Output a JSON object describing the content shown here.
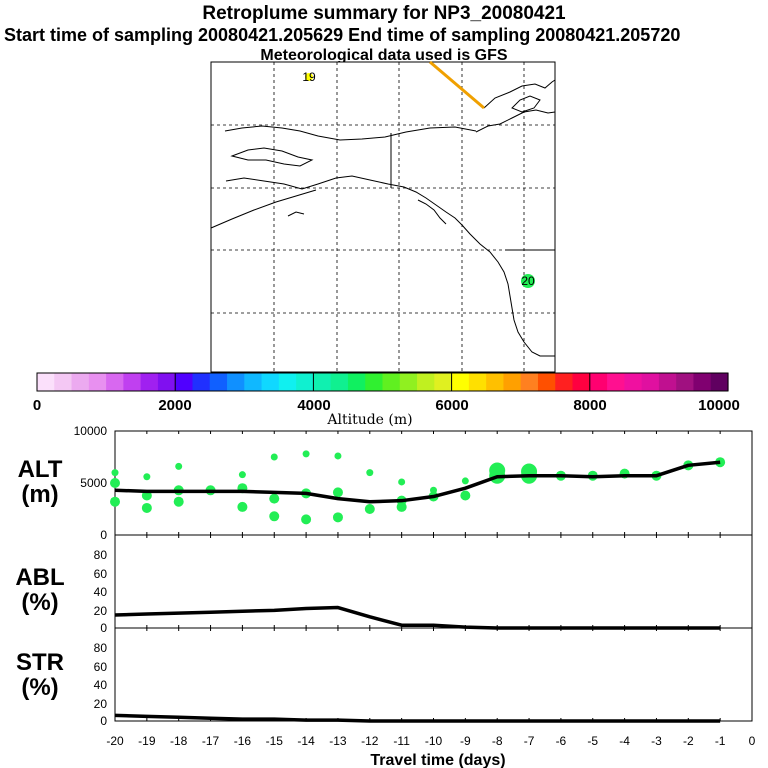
{
  "header": {
    "title": "Retroplume summary for NP3_20080421",
    "sampling_line": "Start time of sampling 20080421.205629     End time of sampling 20080421.205720",
    "met_line": "Meteorological data used is GFS"
  },
  "map": {
    "marker_labels": [
      "19",
      "20"
    ],
    "colors": {
      "plume": "#22ee55",
      "track": "#f0a000",
      "label19": "#ffff00"
    }
  },
  "colorbar": {
    "colors": [
      "#fbe0fb",
      "#f4c8f4",
      "#ecaaf0",
      "#e890f0",
      "#d868f0",
      "#c040f0",
      "#a020f0",
      "#8010f0",
      "#5000ff",
      "#2030ff",
      "#1060ff",
      "#1090ff",
      "#10b8ff",
      "#10d8ff",
      "#10f0f0",
      "#10f0d0",
      "#10f0b0",
      "#10f090",
      "#10f060",
      "#30f030",
      "#60f020",
      "#90f020",
      "#c0f020",
      "#e0f020",
      "#ffff00",
      "#ffe000",
      "#ffc000",
      "#ffa000",
      "#ff8020",
      "#ff5000",
      "#ff2020",
      "#ff0040",
      "#ff0070",
      "#ff1090",
      "#f010a0",
      "#e010a0",
      "#c01090",
      "#a01080",
      "#800070",
      "#600060"
    ],
    "tick_labels": [
      "0",
      "2000",
      "4000",
      "6000",
      "8000",
      "10000"
    ],
    "axis_label": "Altitude (m)"
  },
  "chart_data": {
    "type": "line",
    "x": [
      -20,
      -19,
      -18,
      -17,
      -16,
      -15,
      -14,
      -13,
      -12,
      -11,
      -10,
      -9,
      -8,
      -7,
      -6,
      -5,
      -4,
      -3,
      -2,
      -1
    ],
    "xlabel": "Travel time (days)",
    "xlim": [
      -20,
      0
    ],
    "x_tick_labels": [
      "-20",
      "-19",
      "-18",
      "-17",
      "-16",
      "-15",
      "-14",
      "-13",
      "-12",
      "-11",
      "-10",
      "-9",
      "-8",
      "-7",
      "-6",
      "-5",
      "-4",
      "-3",
      "-2",
      "-1",
      "0"
    ],
    "panels": [
      {
        "label": "ALT",
        "unit": "(m)",
        "ylim": [
          0,
          10000
        ],
        "y_tick_labels": [
          "10000",
          "5000",
          "0"
        ],
        "series": [
          {
            "name": "ALT",
            "values": [
              4300,
              4200,
              4200,
              4200,
              4200,
              4100,
              4000,
              3500,
              3200,
              3300,
              3700,
              4500,
              5600,
              5700,
              5700,
              5600,
              5700,
              5700,
              6700,
              7000
            ]
          }
        ]
      },
      {
        "label": "ABL",
        "unit": "(%)",
        "ylim": [
          0,
          100
        ],
        "y_tick_labels": [
          "80",
          "60",
          "40",
          "20",
          "0"
        ],
        "series": [
          {
            "name": "ABL",
            "values": [
              14,
              15,
              16,
              17,
              18,
              19,
              21,
              22,
              12,
              3,
              3,
              1,
              0,
              0,
              0,
              0,
              0,
              0,
              0,
              0
            ]
          }
        ]
      },
      {
        "label": "STR",
        "unit": "(%)",
        "ylim": [
          0,
          100
        ],
        "y_tick_labels": [
          "80",
          "60",
          "40",
          "20",
          "0"
        ],
        "series": [
          {
            "name": "STR",
            "values": [
              6,
              5,
              4,
              3,
              2,
              2,
              1,
              1,
              0,
              0,
              0,
              0,
              0,
              0,
              0,
              0,
              0,
              0,
              0,
              0
            ]
          }
        ]
      }
    ],
    "alt_spread": [
      {
        "x": -20,
        "y": [
          6000,
          5000,
          3200
        ]
      },
      {
        "x": -19,
        "y": [
          5600,
          3800,
          2600
        ]
      },
      {
        "x": -18,
        "y": [
          6600,
          4300,
          3200
        ]
      },
      {
        "x": -17,
        "y": [
          4300
        ]
      },
      {
        "x": -16,
        "y": [
          5800,
          4500,
          2700
        ]
      },
      {
        "x": -15,
        "y": [
          7500,
          3500,
          1800
        ]
      },
      {
        "x": -14,
        "y": [
          7800,
          4000,
          1500
        ]
      },
      {
        "x": -13,
        "y": [
          7600,
          4100,
          1700
        ]
      },
      {
        "x": -12,
        "y": [
          6000,
          2500
        ]
      },
      {
        "x": -11,
        "y": [
          5100,
          3300,
          2700
        ]
      },
      {
        "x": -10,
        "y": [
          4300,
          3700
        ]
      },
      {
        "x": -9,
        "y": [
          5200,
          3800
        ]
      },
      {
        "x": -8,
        "y": [
          6200,
          5700
        ]
      },
      {
        "x": -7,
        "y": [
          6100,
          5700
        ]
      },
      {
        "x": -6,
        "y": [
          5700
        ]
      },
      {
        "x": -5,
        "y": [
          5700
        ]
      },
      {
        "x": -4,
        "y": [
          5900
        ]
      },
      {
        "x": -3,
        "y": [
          5700
        ]
      },
      {
        "x": -2,
        "y": [
          6700
        ]
      },
      {
        "x": -1,
        "y": [
          7000
        ]
      }
    ]
  }
}
